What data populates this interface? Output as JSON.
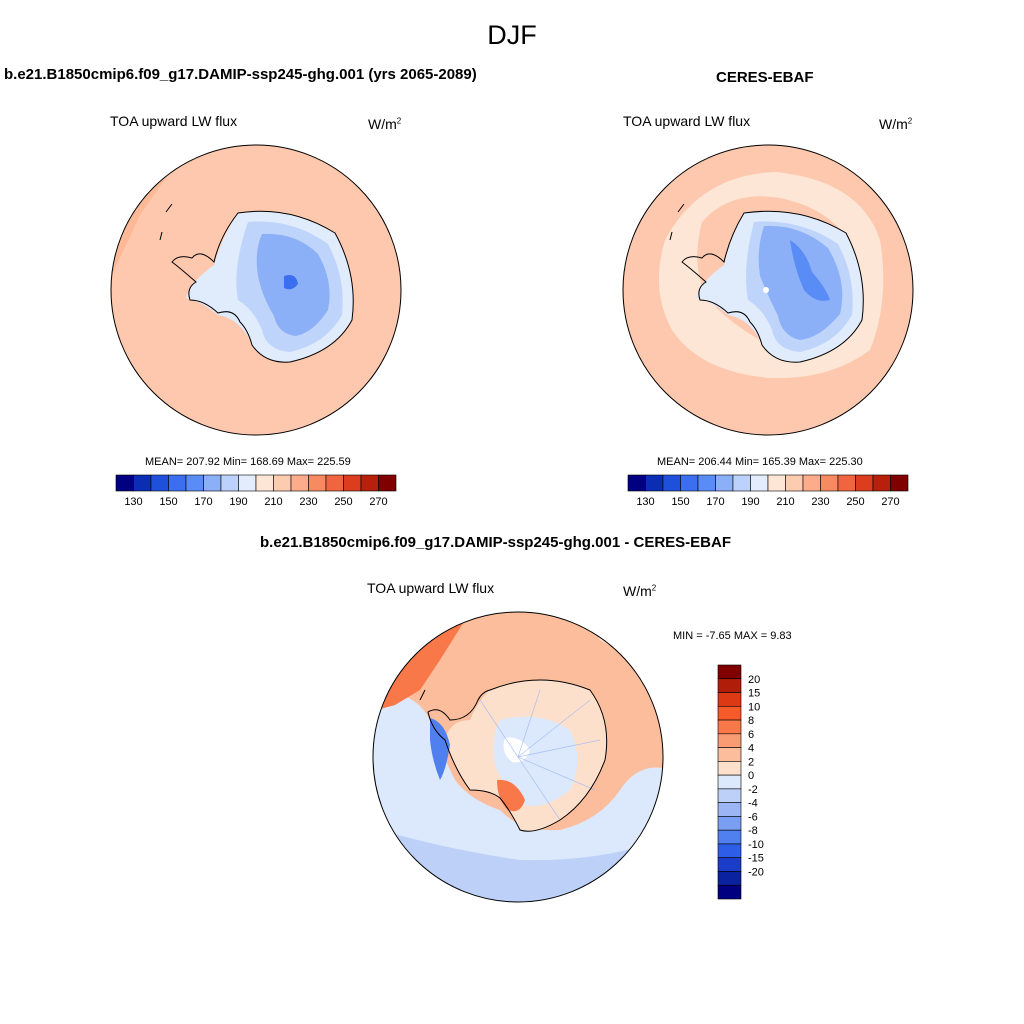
{
  "title": "DJF",
  "panels": [
    {
      "title": "b.e21.B1850cmip6.f09_g17.DAMIP-ssp245-ghg.001 (yrs 2065-2089)",
      "variable": "TOA upward LW flux",
      "units_base": "W/m",
      "units_exp": "2",
      "stats": "MEAN= 207.92  Min= 168.69  Max= 225.59"
    },
    {
      "title": "CERES-EBAF",
      "variable": "TOA upward LW flux",
      "units_base": "W/m",
      "units_exp": "2",
      "stats": "MEAN= 206.44  Min= 165.39  Max= 225.30"
    }
  ],
  "difference_panel": {
    "title": "b.e21.B1850cmip6.f09_g17.DAMIP-ssp245-ghg.001 - CERES-EBAF",
    "variable": "TOA upward LW flux",
    "units_base": "W/m",
    "units_exp": "2",
    "stats": "MIN =  -7.65 MAX =   9.83"
  },
  "colorbar_main": {
    "colors": [
      "#000080",
      "#0a2db4",
      "#1e50dc",
      "#3c6ef0",
      "#5a8cf5",
      "#8cb0f8",
      "#bcd2fa",
      "#e2ecfc",
      "#fde6d5",
      "#fdcbb0",
      "#fcac8a",
      "#f88a62",
      "#f06440",
      "#dc3d1e",
      "#b8200c",
      "#800000"
    ],
    "labels": [
      "130",
      "150",
      "170",
      "190",
      "210",
      "230",
      "250",
      "270"
    ]
  },
  "colorbar_diff": {
    "colors": [
      "#800000",
      "#b01e0a",
      "#dc3914",
      "#f55a28",
      "#f8784a",
      "#f99c74",
      "#fbbd9c",
      "#fde0cc",
      "#dce8fb",
      "#bcd0f8",
      "#9cb6f5",
      "#7a9ef2",
      "#5080f0",
      "#2e5ee8",
      "#1a3cc8",
      "#0a22a0",
      "#000080"
    ],
    "labels": [
      "20",
      "15",
      "10",
      "8",
      "6",
      "4",
      "2",
      "0",
      "-2",
      "-4",
      "-6",
      "-8",
      "-10",
      "-15",
      "-20"
    ]
  }
}
